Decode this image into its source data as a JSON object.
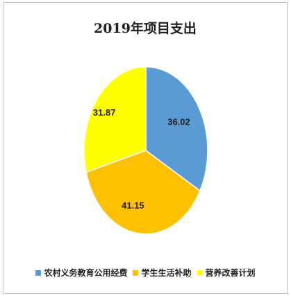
{
  "chart_data": {
    "type": "pie",
    "title": "2019年项目支出",
    "categories": [
      "农村义务教育公用经费",
      "学生生活补助",
      "营养改善计划"
    ],
    "values": [
      36.02,
      41.15,
      31.87
    ],
    "colors": [
      "#5b9bd5",
      "#ffc000",
      "#ffff00"
    ],
    "data_labels": [
      "36.02",
      "41.15",
      "31.87"
    ],
    "legend_position": "bottom"
  }
}
